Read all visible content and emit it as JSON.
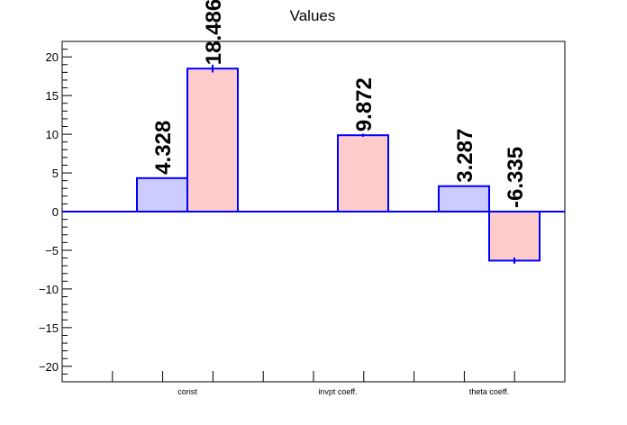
{
  "chart_data": {
    "type": "bar",
    "title": "Values",
    "xlabel": "",
    "ylabel": "",
    "ylim": [
      -22,
      22
    ],
    "yticks": [
      -20,
      -15,
      -10,
      -5,
      0,
      5,
      10,
      15,
      20
    ],
    "ytick_labels": [
      "−20",
      "−15",
      "−10",
      "−5",
      "0",
      "5",
      "10",
      "15",
      "20"
    ],
    "categories": [
      "const",
      "invpt coeff.",
      "theta coeff."
    ],
    "series": [
      {
        "values": [
          4.328,
          null,
          3.287
        ],
        "labels": [
          "4.328",
          "",
          "3.287"
        ],
        "color": "#ccccff"
      },
      {
        "values": [
          18.486,
          9.872,
          -6.335
        ],
        "labels": [
          "18.486",
          "9.872",
          "-6.335"
        ],
        "errors": [
          0.5,
          0.2,
          0.4
        ],
        "color": "#ffcccc"
      }
    ],
    "edge_color": "#0000ff",
    "grid": false
  }
}
